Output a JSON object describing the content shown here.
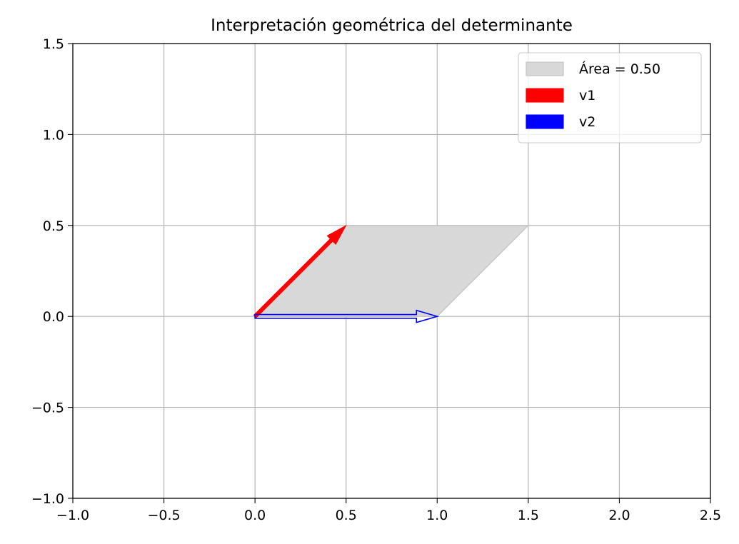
{
  "chart_data": {
    "type": "vector-plot",
    "title": "Interpretación geométrica del determinante",
    "xlabel": "",
    "ylabel": "",
    "xlim": [
      -1.0,
      2.5
    ],
    "ylim": [
      -1.0,
      1.5
    ],
    "xticks": [
      -1.0,
      -0.5,
      0.0,
      0.5,
      1.0,
      1.5,
      2.0,
      2.5
    ],
    "yticks": [
      -1.0,
      -0.5,
      0.0,
      0.5,
      1.0,
      1.5
    ],
    "xtick_labels": [
      "−1.0",
      "−0.5",
      "0.0",
      "0.5",
      "1.0",
      "1.5",
      "2.0",
      "2.5"
    ],
    "ytick_labels": [
      "−1.0",
      "−0.5",
      "0.0",
      "0.5",
      "1.0",
      "1.5"
    ],
    "grid": true,
    "legend_position": "top-right",
    "parallelogram": {
      "label": "Área = 0.50",
      "vertices": [
        [
          0,
          0
        ],
        [
          0.5,
          0.5
        ],
        [
          1.5,
          0.5
        ],
        [
          1.0,
          0
        ]
      ],
      "color": "#d8d8d8",
      "edge_color": "#c4c4c4"
    },
    "vectors": [
      {
        "name": "v1",
        "origin": [
          0,
          0
        ],
        "end": [
          0.5,
          0.5
        ],
        "color": "#ff0000"
      },
      {
        "name": "v2",
        "origin": [
          0,
          0
        ],
        "end": [
          1.0,
          0.0
        ],
        "color": "#0000ff"
      }
    ]
  }
}
